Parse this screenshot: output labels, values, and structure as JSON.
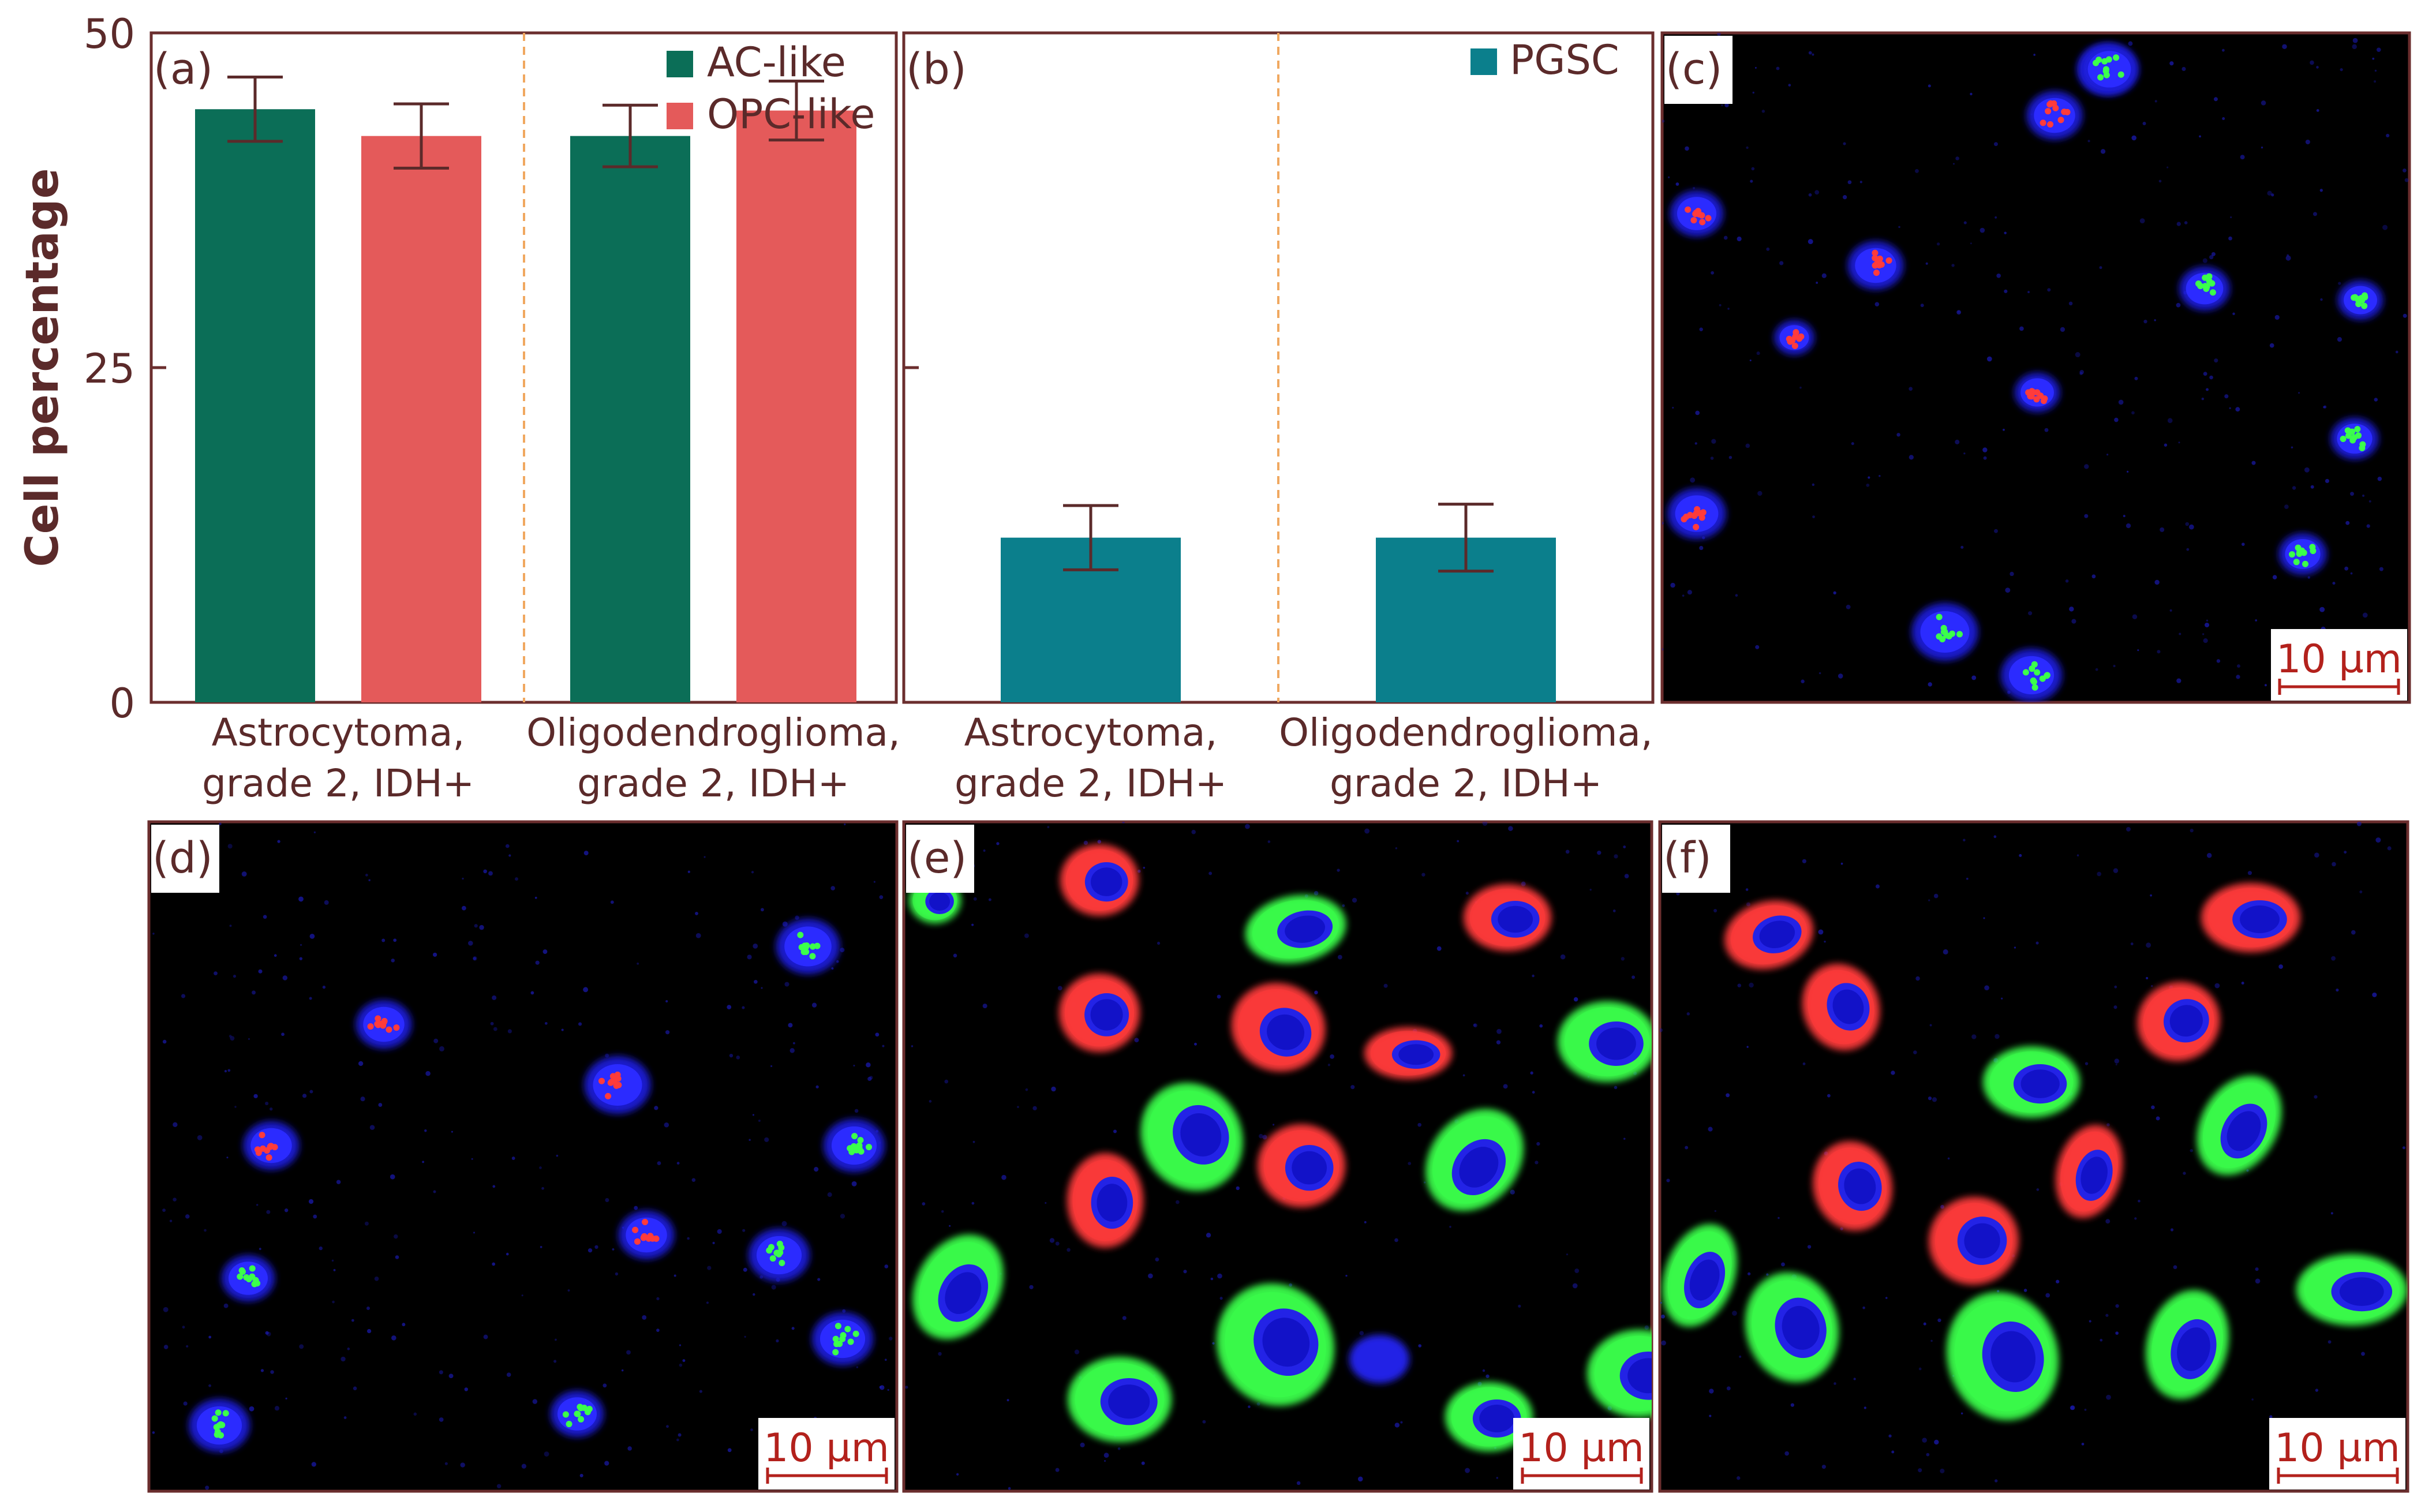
{
  "colors": {
    "text": "#5b2a2a",
    "frame": "#6b2e2e",
    "ac_like": "#0b6e57",
    "opc_like": "#e45a5a",
    "pgsc": "#0b7f8c",
    "divider": "#f0a860",
    "scalebar": "#b3211c",
    "label_box": "#ffffff"
  },
  "chart_data": [
    {
      "panel": "(a)",
      "type": "bar",
      "ylabel": "Cell percentage",
      "ylim": [
        0,
        50
      ],
      "yticks": [
        "0",
        "25",
        "50"
      ],
      "categories": [
        "Astrocytoma,\ngrade 2, IDH+",
        "Oligodendroglioma,\ngrade 2, IDH+"
      ],
      "series": [
        {
          "name": "AC-like",
          "values": [
            44.3,
            42.3
          ],
          "errors": [
            2.4,
            2.3
          ]
        },
        {
          "name": "OPC-like",
          "values": [
            42.3,
            44.2
          ],
          "errors": [
            2.4,
            2.2
          ]
        }
      ],
      "legend": "top-right",
      "grid": false
    },
    {
      "panel": "(b)",
      "type": "bar",
      "ylim": [
        0,
        50
      ],
      "categories": [
        "Astrocytoma,\ngrade 2, IDH+",
        "Oligodendroglioma,\ngrade 2, IDH+"
      ],
      "series": [
        {
          "name": "PGSC",
          "values": [
            12.3,
            12.3
          ],
          "errors": [
            2.4,
            2.5
          ]
        }
      ],
      "legend": "top-right",
      "grid": false
    }
  ],
  "images": [
    {
      "label": "(c)",
      "scale_label": "10 µm"
    },
    {
      "label": "(d)",
      "scale_label": "10 µm"
    },
    {
      "label": "(e)",
      "scale_label": "10 µm"
    },
    {
      "label": "(f)",
      "scale_label": "10 µm"
    }
  ]
}
